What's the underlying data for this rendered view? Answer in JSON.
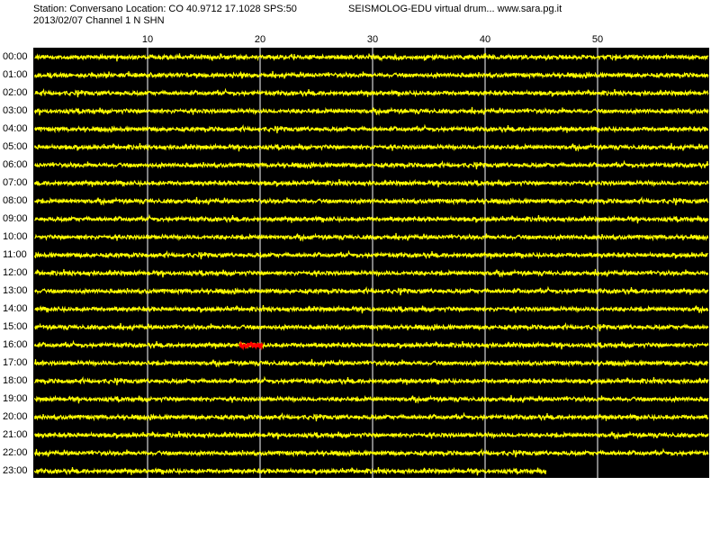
{
  "header": {
    "station_line": "Station: Conversano Location: CO 40.9712 17.1028 SPS:50",
    "app_line": "SEISMOLOG-EDU virtual drum... www.sara.pg.it",
    "date_line": "2013/02/07  Channel 1 N SHN"
  },
  "colors": {
    "page_background": "#ffffff",
    "plot_background": "#000000",
    "trace": "#ffff00",
    "event": "#ff0000",
    "grid": "#ffffff",
    "text": "#000000"
  },
  "drum": {
    "minute_ticks": [
      "10",
      "20",
      "30",
      "40",
      "50"
    ],
    "minutes_per_line": 60,
    "hour_labels": [
      "00:00",
      "01:00",
      "02:00",
      "03:00",
      "04:00",
      "05:00",
      "06:00",
      "07:00",
      "08:00",
      "09:00",
      "10:00",
      "11:00",
      "12:00",
      "13:00",
      "14:00",
      "15:00",
      "16:00",
      "17:00",
      "18:00",
      "19:00",
      "20:00",
      "21:00",
      "22:00",
      "23:00"
    ],
    "last_line_end_minute": 45.5,
    "events": [
      {
        "hour": "16:00",
        "start_minute": 18.2,
        "end_minute": 20.3
      }
    ]
  }
}
